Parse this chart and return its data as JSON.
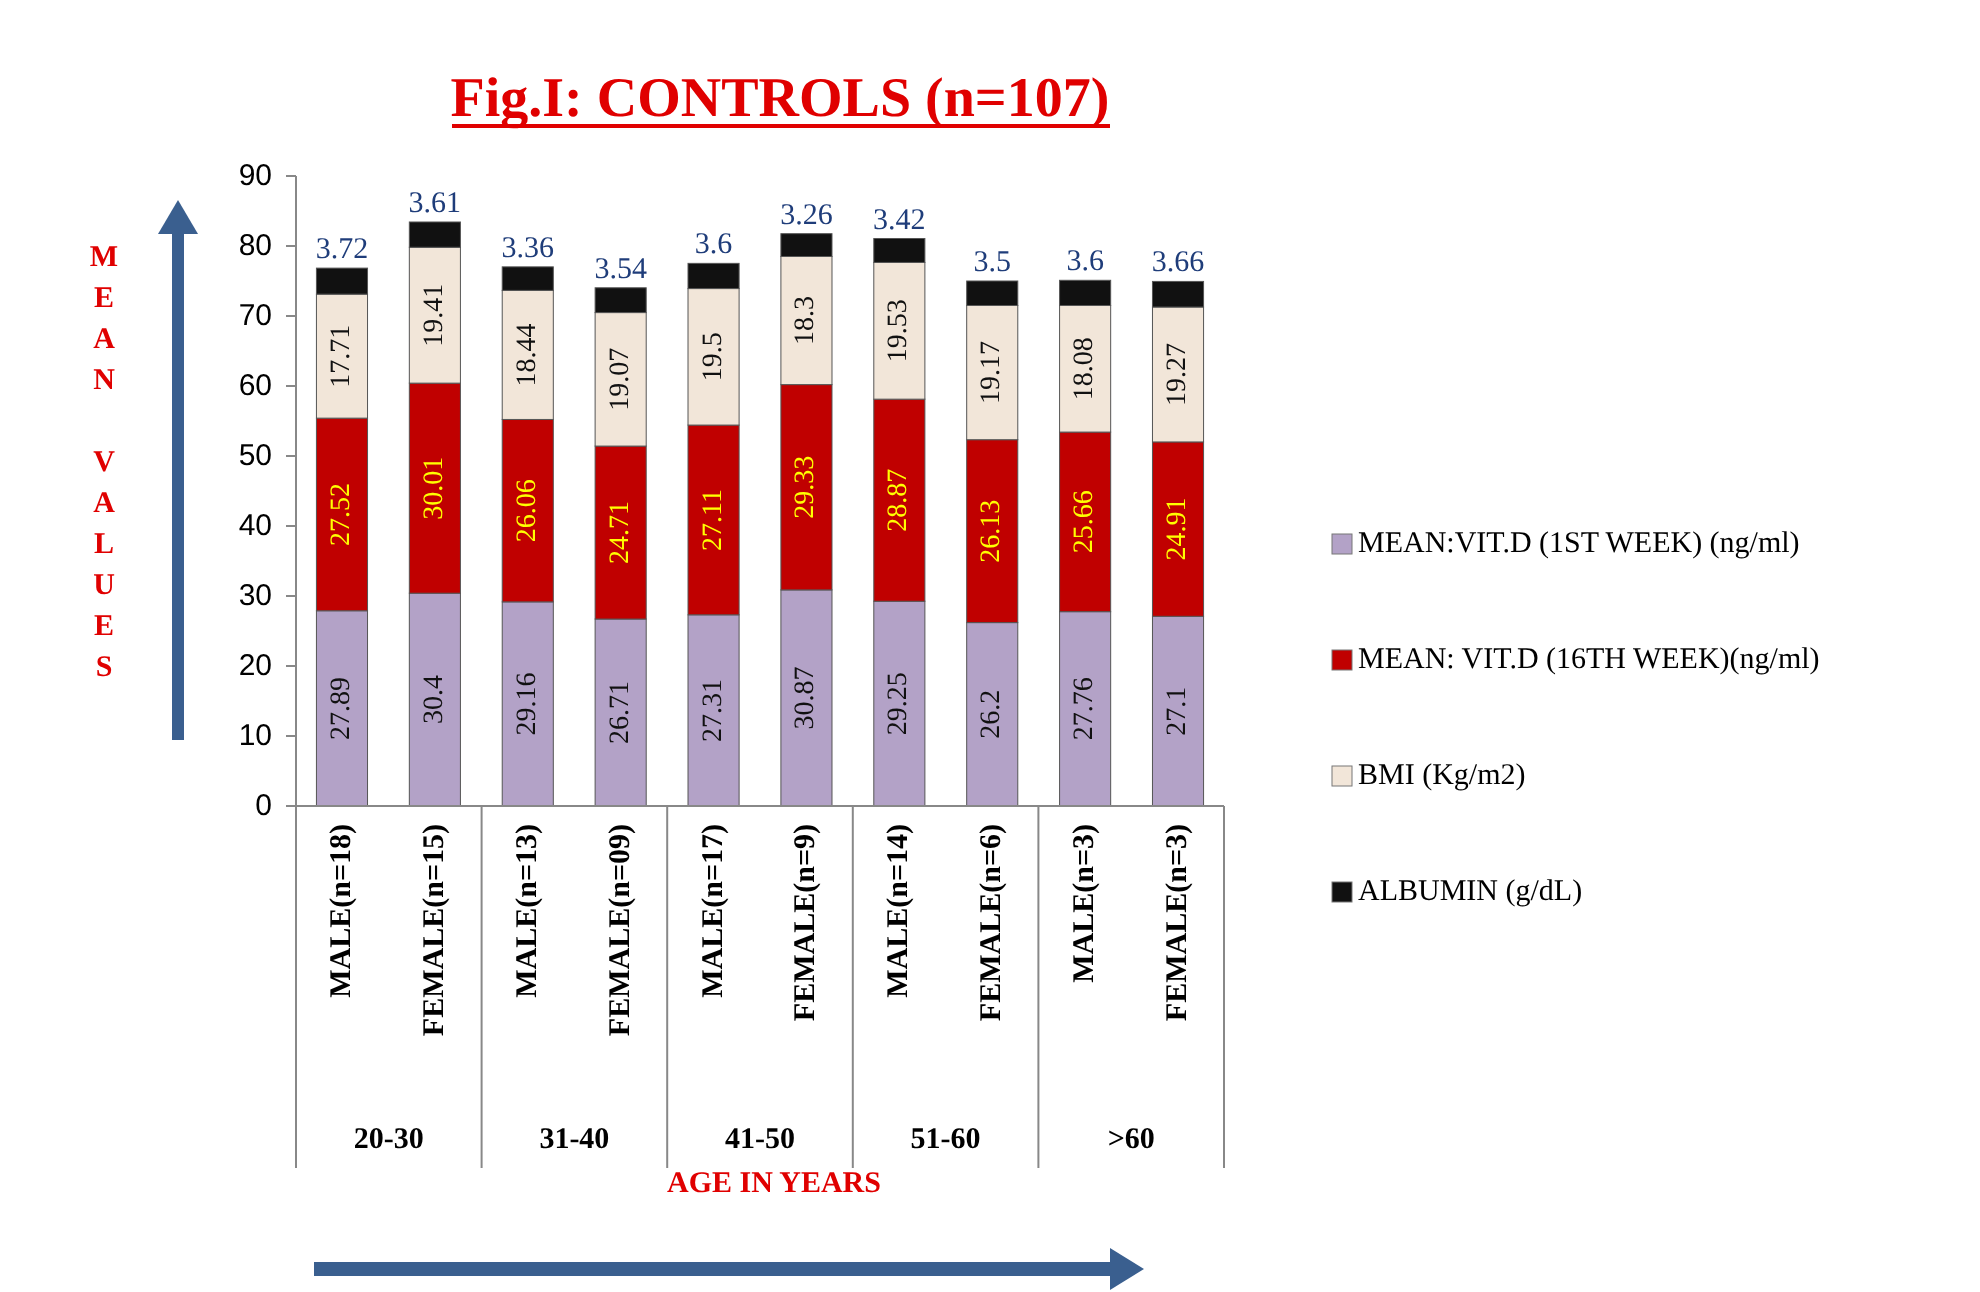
{
  "chart_data": {
    "type": "bar",
    "title": "Fig.I: CONTROLS (n=107)",
    "xlabel": "AGE IN YEARS",
    "ylabel": "MEAN VALUES",
    "categories": [
      "MALE(n=18)",
      "FEMALE(n=15)",
      "MALE(n=13)",
      "FEMALE(n=09)",
      "MALE(n=17)",
      "FEMALE(n=9)",
      "MALE(n=14)",
      "FEMALE(n=6)",
      "MALE(n=3)",
      "FEMALE(n=3)"
    ],
    "annotations": [
      "20-30",
      "31-40",
      "41-50",
      "51-60",
      ">60"
    ],
    "stacked": true,
    "data_labels": true,
    "legend": "right",
    "ylim": [
      0,
      90
    ],
    "yticks": [
      0,
      10,
      20,
      30,
      40,
      50,
      60,
      70,
      80,
      90
    ],
    "series": [
      {
        "name": "MEAN:VIT.D (1ST WEEK) (ng/ml)",
        "color": "#b3a2c7",
        "values": [
          27.89,
          30.4,
          29.16,
          26.71,
          27.31,
          30.87,
          29.25,
          26.2,
          27.76,
          27.1
        ]
      },
      {
        "name": "MEAN: VIT.D (16TH WEEK)(ng/ml)",
        "color": "#c00000",
        "values": [
          27.52,
          30.01,
          26.06,
          24.71,
          27.11,
          29.33,
          28.87,
          26.13,
          25.66,
          24.91
        ]
      },
      {
        "name": "BMI (Kg/m2)",
        "color": "#f2e6d9",
        "values": [
          17.71,
          19.41,
          18.44,
          19.07,
          19.5,
          18.3,
          19.53,
          19.17,
          18.08,
          19.27
        ]
      },
      {
        "name": "ALBUMIN (g/dL)",
        "color": "#111111",
        "values": [
          3.72,
          3.61,
          3.36,
          3.54,
          3.6,
          3.26,
          3.42,
          3.5,
          3.6,
          3.66
        ]
      }
    ]
  }
}
